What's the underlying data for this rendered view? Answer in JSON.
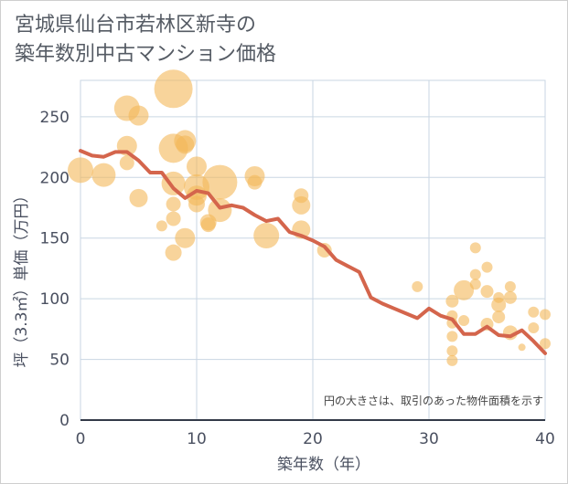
{
  "title_lines": [
    "宮城県仙台市若林区新寺の",
    "築年数別中古マンション価格"
  ],
  "note": "円の大きさは、取引のあった物件面積を示す",
  "chart_data": {
    "type": "scatter",
    "xlabel": "築年数（年）",
    "ylabel": "坪（3.3㎡）単価（万円）",
    "xlim": [
      0,
      40
    ],
    "ylim": [
      0,
      280
    ],
    "xticks": [
      0,
      10,
      20,
      30,
      40
    ],
    "yticks": [
      0,
      50,
      100,
      150,
      200,
      250
    ],
    "grid": true,
    "colors": {
      "bubble": "#f3b759",
      "line": "#d4654c",
      "grid": "#c9d6e3"
    },
    "bubbles": [
      {
        "x": 0,
        "y": 206,
        "s": 14
      },
      {
        "x": 2,
        "y": 202,
        "s": 13
      },
      {
        "x": 4,
        "y": 257,
        "s": 14
      },
      {
        "x": 4,
        "y": 226,
        "s": 11
      },
      {
        "x": 4,
        "y": 212,
        "s": 8
      },
      {
        "x": 5,
        "y": 251,
        "s": 11
      },
      {
        "x": 5,
        "y": 183,
        "s": 10
      },
      {
        "x": 7,
        "y": 160,
        "s": 6
      },
      {
        "x": 8,
        "y": 273,
        "s": 21
      },
      {
        "x": 8,
        "y": 224,
        "s": 16
      },
      {
        "x": 8,
        "y": 195,
        "s": 13
      },
      {
        "x": 8,
        "y": 178,
        "s": 8
      },
      {
        "x": 8,
        "y": 166,
        "s": 8
      },
      {
        "x": 8,
        "y": 138,
        "s": 9
      },
      {
        "x": 9,
        "y": 230,
        "s": 12
      },
      {
        "x": 9,
        "y": 227,
        "s": 10
      },
      {
        "x": 9,
        "y": 150,
        "s": 11
      },
      {
        "x": 10,
        "y": 209,
        "s": 11
      },
      {
        "x": 10,
        "y": 192,
        "s": 14
      },
      {
        "x": 10,
        "y": 185,
        "s": 11
      },
      {
        "x": 10,
        "y": 178,
        "s": 9
      },
      {
        "x": 11,
        "y": 163,
        "s": 9
      },
      {
        "x": 11,
        "y": 161,
        "s": 8
      },
      {
        "x": 12,
        "y": 196,
        "s": 19
      },
      {
        "x": 12,
        "y": 173,
        "s": 13
      },
      {
        "x": 15,
        "y": 201,
        "s": 11
      },
      {
        "x": 15,
        "y": 196,
        "s": 8
      },
      {
        "x": 16,
        "y": 152,
        "s": 14
      },
      {
        "x": 19,
        "y": 185,
        "s": 8
      },
      {
        "x": 19,
        "y": 177,
        "s": 10
      },
      {
        "x": 19,
        "y": 157,
        "s": 10
      },
      {
        "x": 21,
        "y": 140,
        "s": 8
      },
      {
        "x": 29,
        "y": 110,
        "s": 6
      },
      {
        "x": 32,
        "y": 98,
        "s": 7
      },
      {
        "x": 32,
        "y": 86,
        "s": 6
      },
      {
        "x": 32,
        "y": 80,
        "s": 6
      },
      {
        "x": 32,
        "y": 69,
        "s": 6
      },
      {
        "x": 32,
        "y": 57,
        "s": 6
      },
      {
        "x": 32,
        "y": 49,
        "s": 6
      },
      {
        "x": 33,
        "y": 107,
        "s": 11
      },
      {
        "x": 33,
        "y": 82,
        "s": 6
      },
      {
        "x": 34,
        "y": 142,
        "s": 6
      },
      {
        "x": 34,
        "y": 120,
        "s": 6
      },
      {
        "x": 34,
        "y": 112,
        "s": 6
      },
      {
        "x": 35,
        "y": 126,
        "s": 6
      },
      {
        "x": 35,
        "y": 106,
        "s": 7
      },
      {
        "x": 35,
        "y": 79,
        "s": 7
      },
      {
        "x": 36,
        "y": 101,
        "s": 6
      },
      {
        "x": 36,
        "y": 95,
        "s": 8
      },
      {
        "x": 36,
        "y": 85,
        "s": 7
      },
      {
        "x": 37,
        "y": 110,
        "s": 6
      },
      {
        "x": 37,
        "y": 101,
        "s": 7
      },
      {
        "x": 37,
        "y": 72,
        "s": 8
      },
      {
        "x": 38,
        "y": 60,
        "s": 4
      },
      {
        "x": 39,
        "y": 89,
        "s": 6
      },
      {
        "x": 39,
        "y": 76,
        "s": 6
      },
      {
        "x": 40,
        "y": 87,
        "s": 6
      },
      {
        "x": 40,
        "y": 63,
        "s": 6
      }
    ],
    "series": [
      {
        "values_x": [
          0,
          1,
          2,
          3,
          4,
          5,
          6,
          7,
          8,
          9,
          10,
          11,
          12,
          13,
          14,
          15,
          16,
          17,
          18,
          19,
          20,
          21,
          22,
          23,
          24,
          25,
          26,
          27,
          28,
          29,
          30,
          31,
          32,
          33,
          34,
          35,
          36,
          37,
          38,
          39,
          40
        ],
        "values_y": [
          222,
          218,
          217,
          221,
          221,
          214,
          204,
          204,
          191,
          183,
          189,
          187,
          175,
          177,
          175,
          169,
          164,
          166,
          155,
          152,
          148,
          143,
          132,
          127,
          122,
          101,
          96,
          92,
          88,
          84,
          92,
          86,
          83,
          71,
          71,
          77,
          70,
          69,
          74,
          65,
          55
        ]
      }
    ]
  }
}
